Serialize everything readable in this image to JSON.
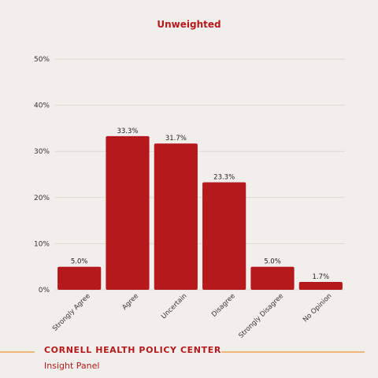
{
  "chart_data": {
    "type": "bar",
    "title": "Unweighted",
    "categories": [
      "Strongly Agree",
      "Agree",
      "Uncertain",
      "Disagree",
      "Strongly Disagree",
      "No Opinion"
    ],
    "values": [
      5.0,
      33.3,
      31.7,
      23.3,
      5.0,
      1.7
    ],
    "data_labels": [
      "5.0%",
      "33.3%",
      "31.7%",
      "23.3%",
      "5.0%",
      "1.7%"
    ],
    "ylim": [
      0,
      50
    ],
    "yticks": [
      0,
      10,
      20,
      30,
      40,
      50
    ],
    "ytick_labels": [
      "0%",
      "10%",
      "20%",
      "30%",
      "40%",
      "50%"
    ],
    "grid": true,
    "bar_color": "#b5191c"
  },
  "footer": {
    "organization": "CORNELL HEALTH POLICY CENTER",
    "subtitle": "Insight Panel",
    "rule_color": "#f0b77a"
  }
}
